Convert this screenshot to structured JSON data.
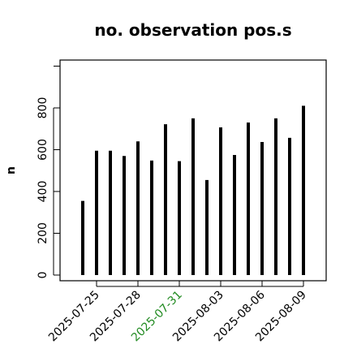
{
  "chart_data": {
    "type": "bar",
    "title": "no. observation pos.s",
    "ylabel": "n",
    "xlabel": "",
    "ylim": [
      -40,
      1040
    ],
    "yticks": [
      0,
      200,
      400,
      600,
      800
    ],
    "grid": false,
    "x": [
      "2025-07-24",
      "2025-07-25",
      "2025-07-26",
      "2025-07-27",
      "2025-07-28",
      "2025-07-29",
      "2025-07-30",
      "2025-07-31",
      "2025-08-01",
      "2025-08-02",
      "2025-08-03",
      "2025-08-04",
      "2025-08-05",
      "2025-08-06",
      "2025-08-07",
      "2025-08-08",
      "2025-08-09"
    ],
    "values": [
      355,
      595,
      595,
      570,
      640,
      548,
      722,
      545,
      750,
      455,
      707,
      575,
      730,
      637,
      750,
      657,
      810
    ],
    "xtick_labels": [
      {
        "label": "2025-07-25",
        "color": "#000000"
      },
      {
        "label": "2025-07-28",
        "color": "#000000"
      },
      {
        "label": "2025-07-31",
        "color": "#228B22"
      },
      {
        "label": "2025-08-03",
        "color": "#000000"
      },
      {
        "label": "2025-08-06",
        "color": "#000000"
      },
      {
        "label": "2025-08-09",
        "color": "#000000"
      }
    ],
    "bar_color": "#000000"
  }
}
